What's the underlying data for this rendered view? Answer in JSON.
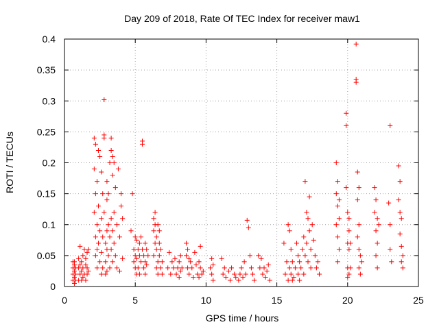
{
  "chart_data": {
    "type": "scatter",
    "title": "Day 209 of 2018, Rate Of TEC Index for receiver maw1",
    "xlabel": "GPS time / hours",
    "ylabel": "ROTI / TECUs",
    "xlim": [
      0,
      25
    ],
    "ylim": [
      0,
      0.4
    ],
    "xticks": [
      0,
      5,
      10,
      15,
      20,
      25
    ],
    "xtick_labels": [
      "0",
      "5",
      "10",
      "15",
      "20",
      "25"
    ],
    "yticks": [
      0,
      0.05,
      0.1,
      0.15,
      0.2,
      0.25,
      0.3,
      0.35,
      0.4
    ],
    "ytick_labels": [
      "0",
      "0.05",
      "0.1",
      "0.15",
      "0.2",
      "0.25",
      "0.3",
      "0.35",
      "0.4"
    ],
    "grid": true,
    "marker": "+",
    "series": [
      {
        "name": "ROTI",
        "color": "#ff0000",
        "x": [
          0.6,
          0.6,
          0.6,
          0.6,
          0.7,
          0.7,
          0.7,
          0.7,
          0.7,
          0.8,
          0.8,
          0.8,
          1.0,
          1.0,
          1.0,
          1.1,
          1.1,
          1.1,
          1.2,
          1.2,
          1.2,
          1.3,
          1.3,
          1.3,
          1.4,
          1.4,
          1.5,
          1.5,
          1.5,
          1.6,
          1.6,
          1.6,
          1.7,
          1.7,
          2.1,
          2.1,
          2.1,
          2.2,
          2.2,
          2.2,
          2.2,
          2.3,
          2.3,
          2.3,
          2.3,
          2.4,
          2.4,
          2.4,
          2.5,
          2.5,
          2.5,
          2.6,
          2.6,
          2.6,
          2.6,
          2.7,
          2.7,
          2.7,
          2.8,
          2.8,
          2.8,
          2.8,
          2.9,
          2.9,
          2.9,
          3.0,
          3.0,
          3.0,
          3.0,
          3.0,
          3.1,
          3.1,
          3.1,
          3.2,
          3.2,
          3.2,
          3.3,
          3.3,
          3.3,
          3.3,
          3.4,
          3.4,
          3.4,
          3.4,
          3.5,
          3.5,
          3.5,
          3.6,
          3.6,
          3.7,
          3.7,
          3.8,
          3.9,
          3.9,
          4.0,
          4.0,
          4.1,
          4.1,
          4.7,
          4.8,
          4.9,
          4.9,
          5.0,
          5.0,
          5.0,
          5.1,
          5.1,
          5.1,
          5.2,
          5.2,
          5.3,
          5.3,
          5.3,
          5.4,
          5.4,
          5.5,
          5.5,
          5.5,
          5.6,
          5.6,
          5.7,
          5.7,
          5.7,
          5.8,
          5.8,
          5.9,
          6.3,
          6.3,
          6.3,
          6.4,
          6.4,
          6.4,
          6.5,
          6.5,
          6.5,
          6.6,
          6.6,
          6.6,
          6.7,
          6.7,
          6.7,
          6.8,
          6.8,
          6.9,
          6.9,
          7.3,
          7.4,
          7.5,
          7.6,
          7.7,
          7.8,
          7.9,
          8.0,
          8.1,
          8.1,
          8.2,
          8.2,
          8.3,
          8.6,
          8.6,
          8.7,
          8.7,
          8.8,
          8.8,
          8.9,
          9.0,
          9.1,
          9.2,
          9.3,
          9.4,
          9.5,
          9.5,
          9.6,
          9.6,
          9.7,
          9.8,
          10.3,
          10.4,
          10.4,
          10.5,
          10.5,
          11.1,
          11.2,
          11.3,
          11.4,
          11.6,
          11.7,
          11.8,
          12.0,
          12.1,
          12.3,
          12.4,
          12.5,
          12.6,
          12.7,
          12.8,
          12.9,
          13.0,
          13.1,
          13.2,
          13.3,
          13.4,
          13.7,
          13.8,
          13.9,
          14.0,
          14.1,
          14.2,
          14.3,
          14.4,
          14.5,
          15.5,
          15.6,
          15.7,
          15.8,
          15.8,
          15.9,
          15.9,
          16.0,
          16.0,
          16.1,
          16.1,
          16.2,
          16.3,
          16.4,
          16.5,
          16.5,
          16.6,
          16.6,
          16.7,
          16.8,
          16.9,
          16.9,
          17.0,
          17.0,
          17.1,
          17.1,
          17.2,
          17.2,
          17.3,
          17.3,
          17.4,
          17.4,
          17.5,
          17.6,
          17.7,
          17.8,
          17.9,
          18.0,
          19.2,
          19.2,
          19.2,
          19.3,
          19.3,
          19.3,
          19.3,
          19.4,
          19.4,
          19.4,
          19.9,
          19.9,
          19.9,
          20.0,
          20.0,
          20.0,
          20.0,
          20.1,
          20.1,
          20.1,
          20.1,
          20.2,
          20.2,
          20.6,
          20.6,
          20.6,
          20.7,
          20.7,
          20.7,
          20.8,
          20.8,
          20.8,
          20.8,
          20.9,
          20.9,
          21.0,
          21.9,
          21.9,
          22.0,
          22.0,
          22.0,
          22.1,
          22.1,
          22.1,
          22.2,
          22.9,
          23.0,
          23.0,
          23.0,
          23.1,
          23.6,
          23.6,
          23.7,
          23.7,
          23.7,
          23.8,
          23.8,
          23.8,
          23.9,
          23.9
        ],
        "y": [
          0.04,
          0.02,
          0.01,
          0.03,
          0.015,
          0.035,
          0.005,
          0.025,
          0.04,
          0.02,
          0.01,
          0.03,
          0.03,
          0.01,
          0.045,
          0.02,
          0.065,
          0.035,
          0.01,
          0.025,
          0.04,
          0.015,
          0.05,
          0.03,
          0.06,
          0.02,
          0.01,
          0.035,
          0.045,
          0.02,
          0.055,
          0.03,
          0.025,
          0.06,
          0.24,
          0.19,
          0.12,
          0.23,
          0.15,
          0.08,
          0.05,
          0.17,
          0.1,
          0.06,
          0.03,
          0.22,
          0.13,
          0.07,
          0.21,
          0.09,
          0.04,
          0.185,
          0.11,
          0.055,
          0.02,
          0.15,
          0.08,
          0.03,
          0.245,
          0.24,
          0.302,
          0.12,
          0.07,
          0.04,
          0.02,
          0.14,
          0.09,
          0.06,
          0.025,
          0.17,
          0.15,
          0.1,
          0.05,
          0.2,
          0.08,
          0.03,
          0.24,
          0.22,
          0.11,
          0.06,
          0.21,
          0.18,
          0.09,
          0.04,
          0.2,
          0.12,
          0.07,
          0.16,
          0.05,
          0.1,
          0.03,
          0.19,
          0.08,
          0.025,
          0.15,
          0.13,
          0.11,
          0.045,
          0.09,
          0.15,
          0.06,
          0.04,
          0.08,
          0.03,
          0.05,
          0.075,
          0.045,
          0.02,
          0.06,
          0.03,
          0.07,
          0.05,
          0.02,
          0.08,
          0.04,
          0.235,
          0.23,
          0.06,
          0.05,
          0.03,
          0.07,
          0.04,
          0.02,
          0.06,
          0.035,
          0.05,
          0.11,
          0.09,
          0.05,
          0.12,
          0.1,
          0.07,
          0.08,
          0.06,
          0.03,
          0.1,
          0.04,
          0.02,
          0.09,
          0.07,
          0.05,
          0.06,
          0.03,
          0.04,
          0.02,
          0.03,
          0.055,
          0.02,
          0.04,
          0.03,
          0.045,
          0.02,
          0.03,
          0.04,
          0.015,
          0.05,
          0.025,
          0.03,
          0.07,
          0.05,
          0.06,
          0.03,
          0.045,
          0.02,
          0.04,
          0.03,
          0.015,
          0.055,
          0.035,
          0.02,
          0.04,
          0.015,
          0.065,
          0.03,
          0.02,
          0.025,
          0.03,
          0.02,
          0.045,
          0.01,
          0.035,
          0.045,
          0.02,
          0.03,
          0.015,
          0.025,
          0.01,
          0.03,
          0.02,
          0.015,
          0.01,
          0.02,
          0.03,
          0.015,
          0.04,
          0.02,
          0.107,
          0.095,
          0.05,
          0.03,
          0.02,
          0.01,
          0.05,
          0.03,
          0.045,
          0.02,
          0.03,
          0.015,
          0.025,
          0.035,
          0.01,
          0.07,
          0.02,
          0.04,
          0.1,
          0.01,
          0.09,
          0.03,
          0.06,
          0.02,
          0.04,
          0.01,
          0.015,
          0.03,
          0.07,
          0.05,
          0.02,
          0.04,
          0.01,
          0.03,
          0.06,
          0.02,
          0.08,
          0.05,
          0.17,
          0.12,
          0.07,
          0.11,
          0.04,
          0.145,
          0.09,
          0.06,
          0.03,
          0.1,
          0.075,
          0.05,
          0.03,
          0.04,
          0.02,
          0.2,
          0.15,
          0.1,
          0.17,
          0.13,
          0.08,
          0.04,
          0.14,
          0.11,
          0.06,
          0.28,
          0.26,
          0.16,
          0.12,
          0.07,
          0.03,
          0.015,
          0.11,
          0.09,
          0.06,
          0.02,
          0.07,
          0.03,
          0.392,
          0.335,
          0.33,
          0.185,
          0.14,
          0.08,
          0.16,
          0.1,
          0.06,
          0.03,
          0.05,
          0.02,
          0.04,
          0.16,
          0.12,
          0.14,
          0.09,
          0.05,
          0.11,
          0.07,
          0.03,
          0.1,
          0.135,
          0.26,
          0.1,
          0.06,
          0.04,
          0.195,
          0.14,
          0.17,
          0.12,
          0.085,
          0.11,
          0.065,
          0.04,
          0.05,
          0.03
        ]
      }
    ]
  }
}
